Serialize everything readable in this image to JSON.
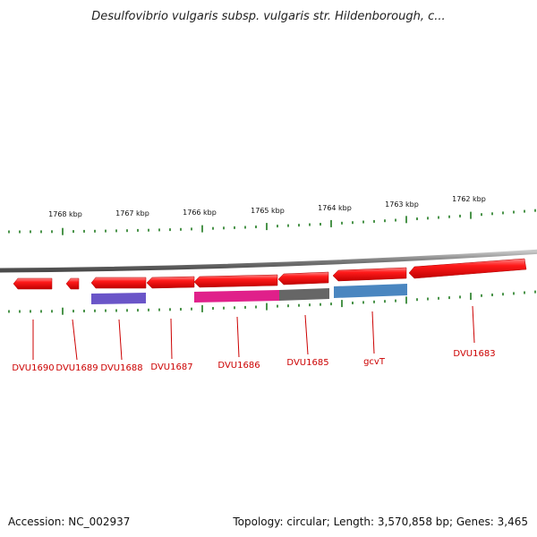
{
  "header": {
    "title": "Desulfovibrio vulgaris subsp. vulgaris str. Hildenborough, c..."
  },
  "footer": {
    "accession": "Accession: NC_002937",
    "summary": "Topology: circular; Length: 3,570,858 bp; Genes: 3,465"
  },
  "ruler": {
    "labels": [
      "1768 kbp",
      "1767 kbp",
      "1766 kbp",
      "1765 kbp",
      "1764 kbp",
      "1763 kbp",
      "1762 kbp"
    ]
  },
  "genes": [
    {
      "label": "DVU1690",
      "strand": "reverse"
    },
    {
      "label": "DVU1689",
      "strand": "reverse"
    },
    {
      "label": "DVU1688",
      "strand": "reverse"
    },
    {
      "label": "DVU1687",
      "strand": "reverse"
    },
    {
      "label": "DVU1686",
      "strand": "reverse"
    },
    {
      "label": "DVU1685",
      "strand": "reverse"
    },
    {
      "label": "gcvT",
      "strand": "reverse"
    },
    {
      "label": "DVU1683",
      "strand": "reverse"
    }
  ],
  "colors": {
    "gene": "#ee1111",
    "backbone": "#808080",
    "tick": "#1e7a1e",
    "label": "#cc0000",
    "feature_purple": "#6a55c8",
    "feature_magenta": "#e0208a",
    "feature_gray": "#666666",
    "feature_blue": "#4a86c0"
  }
}
